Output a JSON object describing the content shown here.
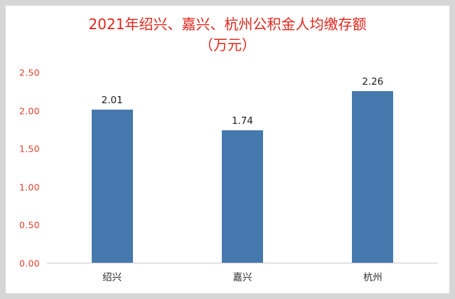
{
  "title": {
    "line1": "2021年绍兴、嘉兴、杭州公积金人均缴存额",
    "line2": "（万元）"
  },
  "colors": {
    "title": "#e1251b",
    "axis_ticks": "#e0412c",
    "bar_fill": "#4579ad",
    "baseline": "#c9c9c9",
    "background": "#ffffff",
    "frame": "#d6d6d6"
  },
  "chart_data": {
    "type": "bar",
    "title": "2021年绍兴、嘉兴、杭州公积金人均缴存额（万元）",
    "categories": [
      "绍兴",
      "嘉兴",
      "杭州"
    ],
    "values": [
      2.01,
      1.74,
      2.26
    ],
    "data_labels": [
      "2.01",
      "1.74",
      "2.26"
    ],
    "xlabel": "",
    "ylabel": "",
    "ylim": [
      0,
      2.5
    ],
    "yticks": [
      "0.00",
      "0.50",
      "1.00",
      "1.50",
      "2.00",
      "2.50"
    ],
    "grid": false,
    "legend": "none"
  }
}
